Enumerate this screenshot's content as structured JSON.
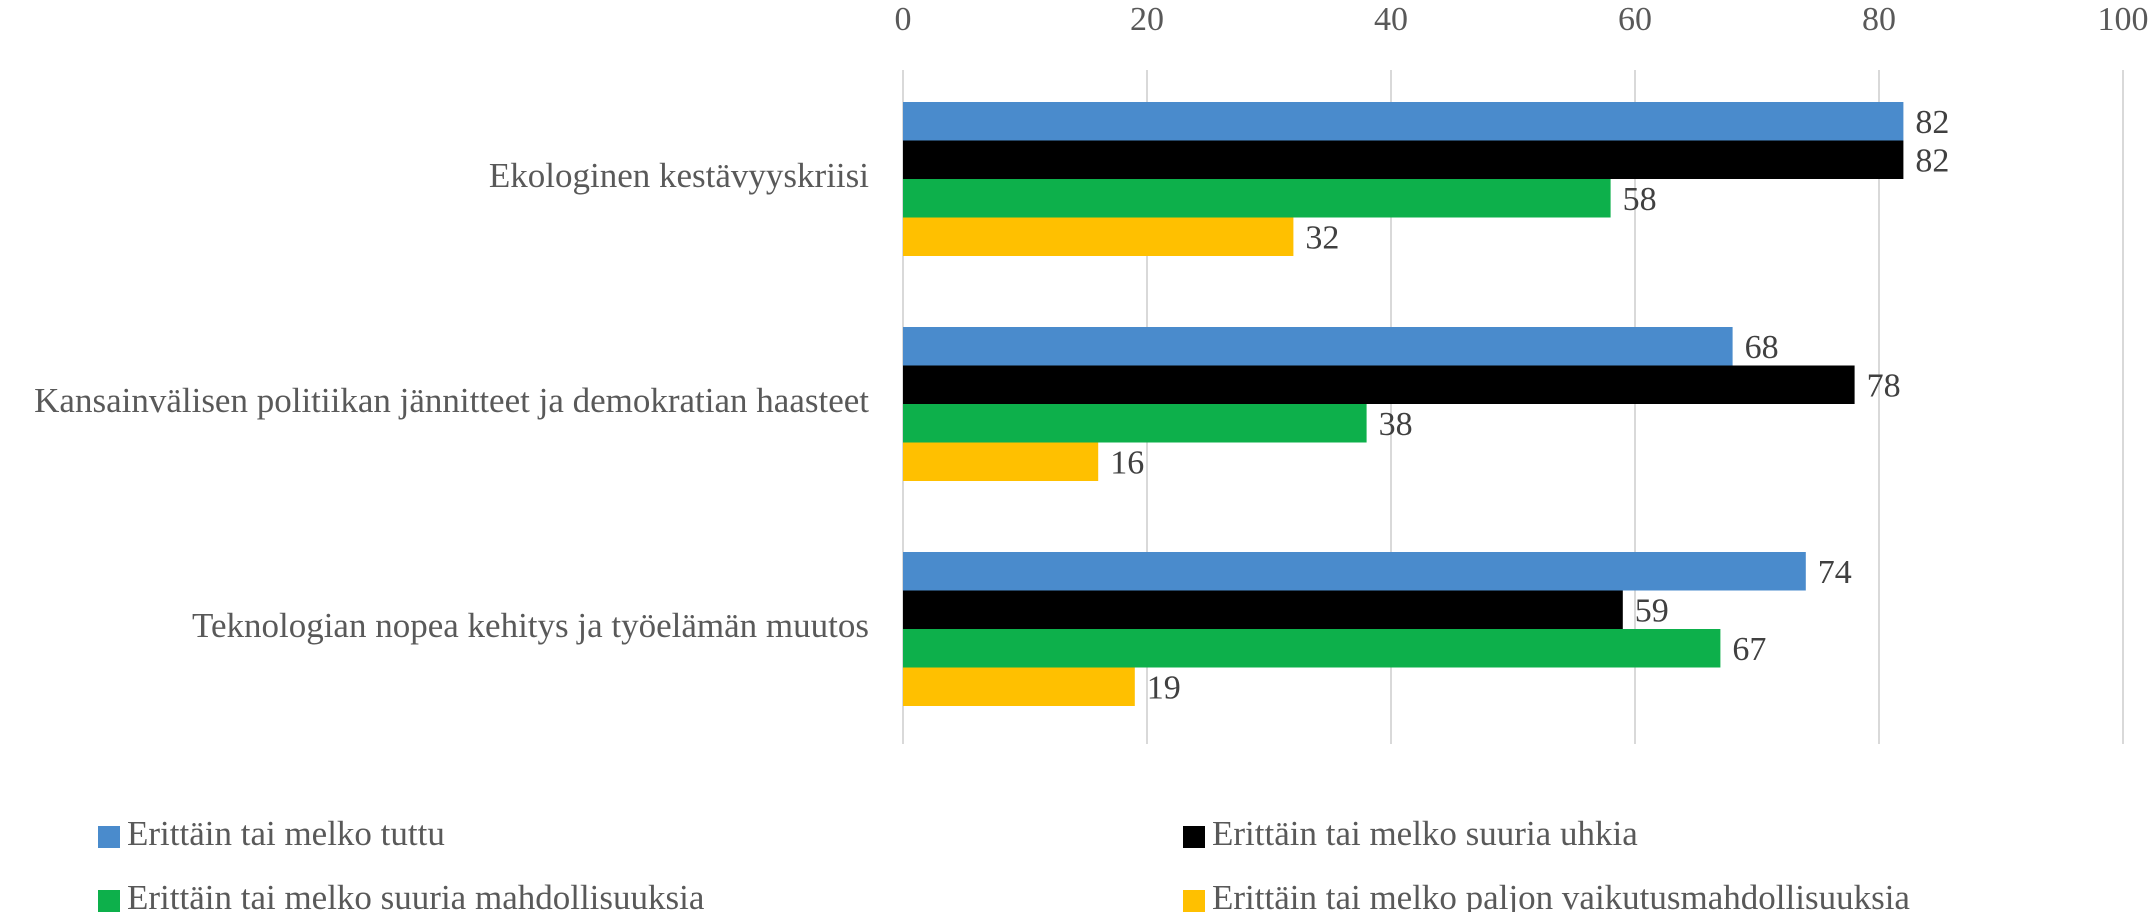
{
  "chart_data": {
    "type": "barh",
    "categories": [
      "Ekologinen kestävyyskriisi",
      "Kansainvälisen politiikan jännitteet ja demokratian haasteet",
      "Teknologian nopea kehitys ja työelämän muutos"
    ],
    "series": [
      {
        "name": "Erittäin tai melko tuttu",
        "color": "#4a8bcc",
        "values": [
          82,
          68,
          74
        ]
      },
      {
        "name": "Erittäin tai melko suuria uhkia",
        "color": "#000000",
        "values": [
          82,
          78,
          59
        ]
      },
      {
        "name": "Erittäin tai melko suuria mahdollisuuksia",
        "color": "#0db04b",
        "values": [
          58,
          38,
          67
        ]
      },
      {
        "name": "Erittäin tai melko paljon vaikutusmahdollisuuksia",
        "color": "#ffc000",
        "values": [
          32,
          16,
          19
        ]
      }
    ],
    "xlim": [
      0,
      100
    ],
    "xticks": [
      0,
      20,
      40,
      60,
      80,
      100
    ],
    "grid": true,
    "legend": "bottom"
  }
}
